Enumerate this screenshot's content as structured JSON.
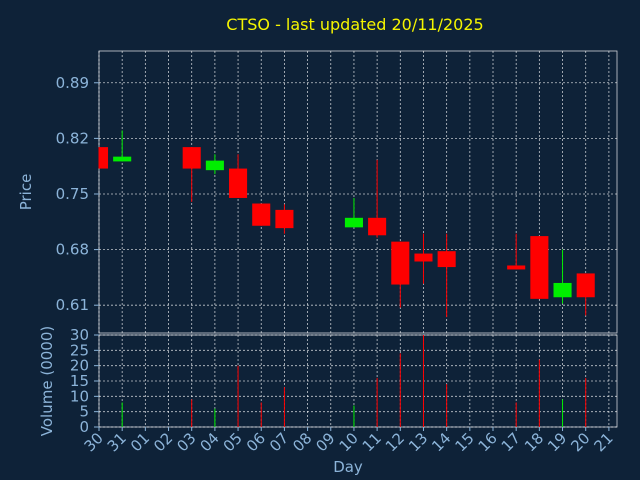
{
  "title": "CTSO - last updated 20/11/2025",
  "colors": {
    "background": "#0e2238",
    "up": "#00ee00",
    "down": "#ff0000",
    "axis_text": "#8cb4d9",
    "title": "#f5f500",
    "grid": "#ffffff"
  },
  "chart_data": {
    "type": "candlestick",
    "title": "CTSO - last updated 20/11/2025",
    "price_panel": {
      "ylabel": "Price",
      "yticks": [
        0.61,
        0.68,
        0.75,
        0.82,
        0.89
      ],
      "ylim": [
        0.575,
        0.93
      ],
      "grid": true
    },
    "volume_panel": {
      "ylabel": "Volume (0000)",
      "yticks": [
        0,
        5,
        10,
        15,
        20,
        25,
        30
      ],
      "ylim": [
        0,
        30
      ],
      "grid": true
    },
    "xlabel": "Day",
    "xticks": [
      "30",
      "31",
      "01",
      "02",
      "03",
      "04",
      "05",
      "06",
      "07",
      "08",
      "09",
      "10",
      "11",
      "12",
      "13",
      "14",
      "15",
      "16",
      "17",
      "18",
      "19",
      "20",
      "21"
    ],
    "candles": [
      {
        "day": "30",
        "open": 0.809,
        "high": 0.809,
        "low": 0.782,
        "close": 0.782,
        "volume": 0
      },
      {
        "day": "31",
        "open": 0.791,
        "high": 0.83,
        "low": 0.791,
        "close": 0.797,
        "volume": 8
      },
      {
        "day": "03",
        "open": 0.809,
        "high": 0.809,
        "low": 0.74,
        "close": 0.782,
        "volume": 9
      },
      {
        "day": "04",
        "open": 0.78,
        "high": 0.8,
        "low": 0.775,
        "close": 0.792,
        "volume": 6
      },
      {
        "day": "05",
        "open": 0.782,
        "high": 0.8,
        "low": 0.745,
        "close": 0.745,
        "volume": 20
      },
      {
        "day": "06",
        "open": 0.738,
        "high": 0.738,
        "low": 0.71,
        "close": 0.71,
        "volume": 8
      },
      {
        "day": "07",
        "open": 0.73,
        "high": 0.737,
        "low": 0.7,
        "close": 0.707,
        "volume": 13
      },
      {
        "day": "10",
        "open": 0.708,
        "high": 0.745,
        "low": 0.708,
        "close": 0.72,
        "volume": 7
      },
      {
        "day": "11",
        "open": 0.72,
        "high": 0.793,
        "low": 0.695,
        "close": 0.698,
        "volume": 16
      },
      {
        "day": "12",
        "open": 0.69,
        "high": 0.69,
        "low": 0.607,
        "close": 0.636,
        "volume": 24
      },
      {
        "day": "13",
        "open": 0.675,
        "high": 0.7,
        "low": 0.637,
        "close": 0.665,
        "volume": 30
      },
      {
        "day": "14",
        "open": 0.678,
        "high": 0.7,
        "low": 0.595,
        "close": 0.658,
        "volume": 14
      },
      {
        "day": "17",
        "open": 0.66,
        "high": 0.7,
        "low": 0.655,
        "close": 0.655,
        "volume": 8
      },
      {
        "day": "18",
        "open": 0.697,
        "high": 0.697,
        "low": 0.618,
        "close": 0.618,
        "volume": 22
      },
      {
        "day": "19",
        "open": 0.62,
        "high": 0.68,
        "low": 0.612,
        "close": 0.638,
        "volume": 9
      },
      {
        "day": "20",
        "open": 0.65,
        "high": 0.65,
        "low": 0.597,
        "close": 0.62,
        "volume": 16
      }
    ]
  }
}
